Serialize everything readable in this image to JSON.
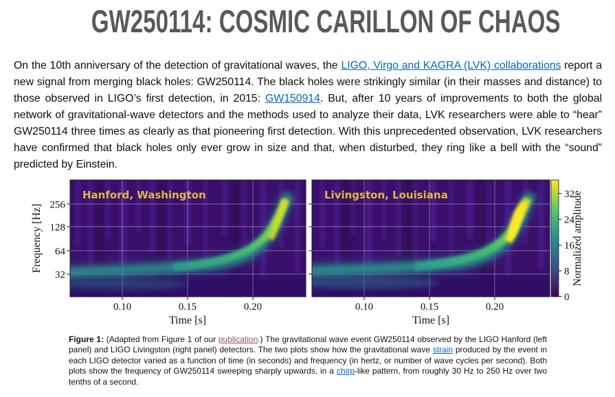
{
  "title": "GW250114: COSMIC CARILLON OF CHAOS",
  "colors": {
    "title_color": "#595959",
    "link_blue": "#0563C1",
    "link_visited": "#954F72",
    "panel_gold": "#e0b93f",
    "spectrogram_background": "#3a0f6b",
    "chirp_teal": "#2b8f8a",
    "chirp_peak_yellow": "#f8e71c"
  },
  "intro": {
    "segments": [
      {
        "text": "On the 10th anniversary of the detection of gravitational waves, the "
      },
      {
        "text": "LIGO, Virgo and KAGRA (LVK) collaborations",
        "link": true,
        "name": "lvk-collaborations"
      },
      {
        "text": " report a new signal from merging black holes: GW250114. The black holes  were strikingly similar (in their masses and distance) to those observed in LIGO’s first detection, in 2015: "
      },
      {
        "text": "GW150914",
        "link": true,
        "name": "gw150914"
      },
      {
        "text": ". But, after 10 years of improvements to both the global network of gravitational-wave detectors and the methods used to analyze their data, LVK researchers were able to “hear” GW250114 three times as clearly as that pioneering first detection. With this unprecedented observation, LVK researchers have confirmed that black holes only ever grow in size and that, when disturbed, they ring like a bell with the “sound” predicted by Einstein."
      }
    ]
  },
  "figure": {
    "ylabel": "Frequency [Hz]",
    "xlabel": "Time [s]",
    "yticks": [
      "256",
      "128",
      "64",
      "32"
    ],
    "xticks": [
      "0.10",
      "0.15",
      "0.20"
    ],
    "panels": [
      {
        "label": "Hanford, Washington"
      },
      {
        "label": "Livingston, Louisiana"
      }
    ],
    "colorbar": {
      "label": "Normalized amplitude",
      "ticks": [
        "32",
        "24",
        "16",
        "8",
        "0"
      ]
    }
  },
  "chart_data": [
    {
      "type": "heatmap",
      "title": "Hanford, Washington",
      "xlabel": "Time [s]",
      "ylabel": "Frequency [Hz]",
      "x_range": [
        0.06,
        0.245
      ],
      "xticks": [
        0.1,
        0.15,
        0.2
      ],
      "yticks_hz": [
        32,
        64,
        128,
        256
      ],
      "y_scale": "log",
      "grid": true,
      "colormap": "viridis",
      "amplitude_range": [
        0,
        36
      ],
      "signal_track_time_hz": [
        [
          0.06,
          30
        ],
        [
          0.1,
          33
        ],
        [
          0.14,
          37
        ],
        [
          0.17,
          45
        ],
        [
          0.19,
          55
        ],
        [
          0.2,
          70
        ],
        [
          0.21,
          100
        ],
        [
          0.215,
          140
        ],
        [
          0.22,
          200
        ],
        [
          0.225,
          250
        ]
      ],
      "peak_normalized_amplitude": 28
    },
    {
      "type": "heatmap",
      "title": "Livingston, Louisiana",
      "xlabel": "Time [s]",
      "ylabel": "Frequency [Hz]",
      "x_range": [
        0.06,
        0.245
      ],
      "xticks": [
        0.1,
        0.15,
        0.2
      ],
      "yticks_hz": [
        32,
        64,
        128,
        256
      ],
      "y_scale": "log",
      "grid": true,
      "colormap": "viridis",
      "amplitude_range": [
        0,
        36
      ],
      "signal_track_time_hz": [
        [
          0.06,
          30
        ],
        [
          0.1,
          33
        ],
        [
          0.14,
          37
        ],
        [
          0.17,
          45
        ],
        [
          0.19,
          55
        ],
        [
          0.2,
          70
        ],
        [
          0.21,
          100
        ],
        [
          0.215,
          140
        ],
        [
          0.22,
          200
        ],
        [
          0.225,
          250
        ]
      ],
      "peak_normalized_amplitude": 34,
      "colorbar_label": "Normalized amplitude",
      "colorbar_ticks": [
        0,
        8,
        16,
        24,
        32
      ]
    }
  ],
  "caption": {
    "segments": [
      {
        "text": "Figure 1:",
        "bold": true
      },
      {
        "text": " (Adapted from Figure 1 of our "
      },
      {
        "text": "publication",
        "link": true,
        "visited": true,
        "name": "publication"
      },
      {
        "text": ".)  The gravitational wave event GW250114 observed by the LIGO Hanford (left panel) and LIGO Livingston (right panel) detectors.   The two plots show how the gravitational wave "
      },
      {
        "text": "strain",
        "link": true,
        "name": "strain"
      },
      {
        "text": " produced by the event in each LIGO detector varied as a function of time (in seconds) and frequency (in hertz, or number of wave cycles per second).  Both plots show the frequency of GW250114 sweeping sharply upwards, in a "
      },
      {
        "text": "chirp",
        "link": true,
        "name": "chirp"
      },
      {
        "text": "-like pattern, from roughly 30 Hz to 250 Hz over two tenths of a second."
      }
    ]
  }
}
